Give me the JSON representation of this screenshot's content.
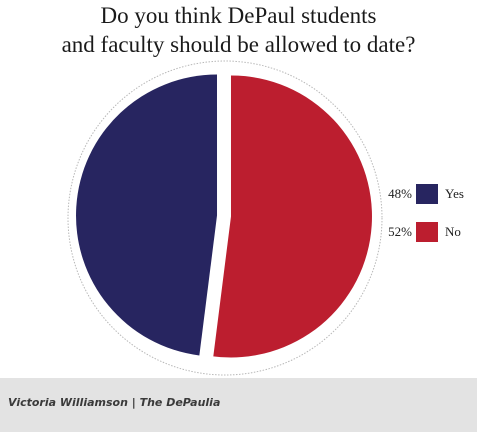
{
  "chart_data": {
    "type": "pie",
    "title_lines": [
      "Do you think DePaul students",
      "and faculty should be allowed to date?"
    ],
    "slices": [
      {
        "label": "Yes",
        "value": 48,
        "value_label": "48%",
        "color": "#272560"
      },
      {
        "label": "No",
        "value": 52,
        "value_label": "52%",
        "color": "#bc1e2f"
      }
    ],
    "legend_position": "right",
    "exploded": true
  },
  "credit": "Victoria Williamson | The DePaulia"
}
